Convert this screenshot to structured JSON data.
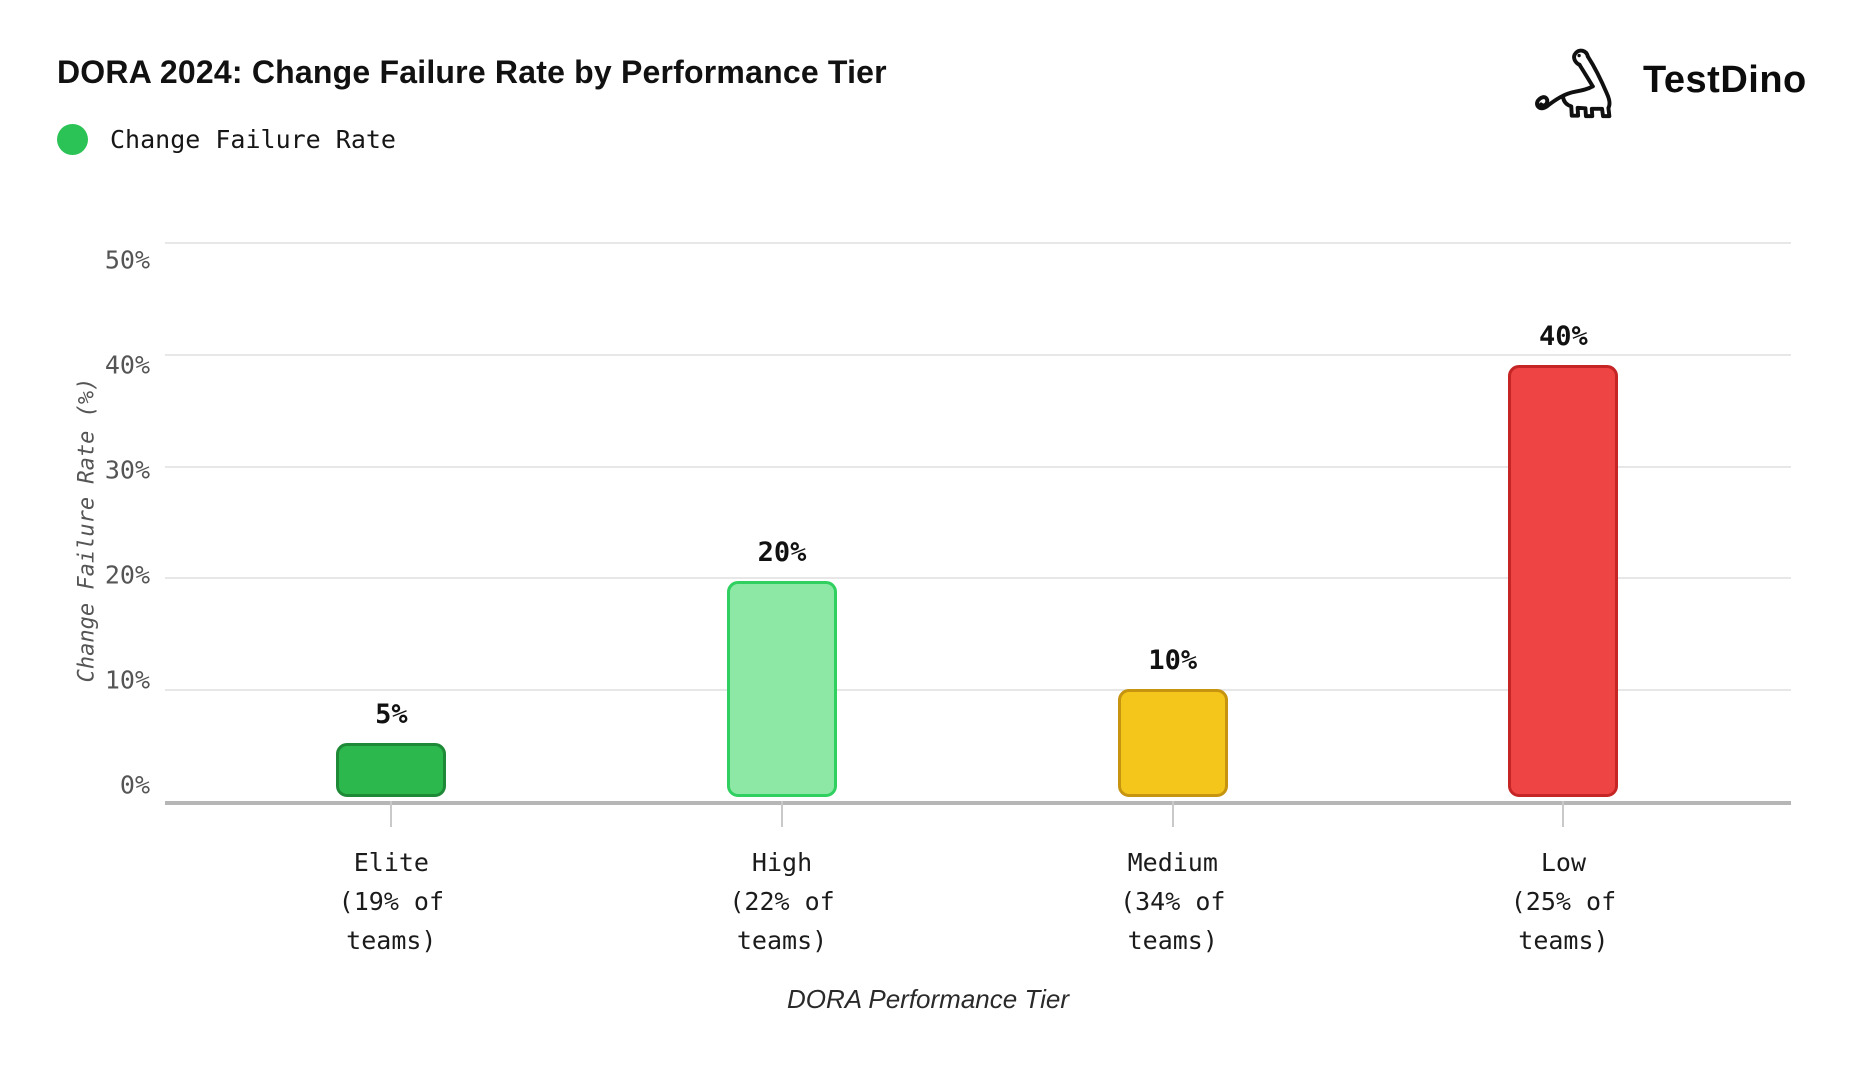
{
  "header": {
    "title": "DORA 2024: Change Failure Rate by Performance Tier"
  },
  "brand": {
    "name": "TestDino",
    "logo_icon": "dinosaur-icon"
  },
  "legend": {
    "label": "Change Failure Rate",
    "color": "#2bc356"
  },
  "chart_data": {
    "type": "bar",
    "title": "DORA 2024: Change Failure Rate by Performance Tier",
    "xlabel": "DORA Performance Tier",
    "ylabel": "Change Failure Rate (%)",
    "ylim": [
      0,
      50
    ],
    "y_ticks": [
      "50%",
      "40%",
      "30%",
      "20%",
      "10%",
      "0%"
    ],
    "grid": "horizontal",
    "legend_position": "top-left",
    "categories": [
      [
        "Elite",
        "(19% of",
        "teams)"
      ],
      [
        "High",
        "(22% of",
        "teams)"
      ],
      [
        "Medium",
        "(34% of",
        "teams)"
      ],
      [
        "Low",
        "(25% of",
        "teams)"
      ]
    ],
    "values": [
      5,
      20,
      10,
      40
    ],
    "value_labels": [
      "5%",
      "20%",
      "10%",
      "40%"
    ],
    "bar_colors": [
      {
        "fill": "#2db84e",
        "stroke": "#1e8a37"
      },
      {
        "fill": "#8de8a6",
        "stroke": "#2fd05f"
      },
      {
        "fill": "#f4c51b",
        "stroke": "#c79410"
      },
      {
        "fill": "#ee4444",
        "stroke": "#c52525"
      }
    ]
  }
}
